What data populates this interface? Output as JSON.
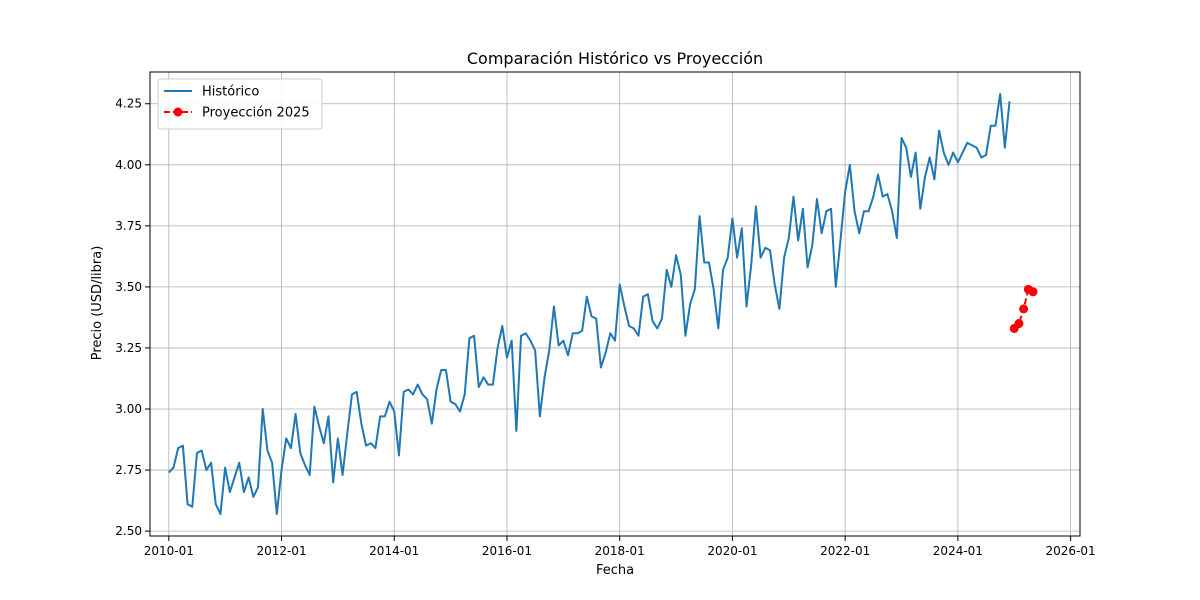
{
  "chart_data": {
    "type": "line",
    "title": "Comparación Histórico vs Proyección",
    "xlabel": "Fecha",
    "ylabel": "Precio (USD/libra)",
    "x_ticks": [
      "2010-01",
      "2012-01",
      "2014-01",
      "2016-01",
      "2018-01",
      "2020-01",
      "2022-01",
      "2024-01",
      "2026-01"
    ],
    "y_ticks": [
      "2.50",
      "2.75",
      "3.00",
      "3.25",
      "3.50",
      "3.75",
      "4.00",
      "4.25"
    ],
    "xlim": [
      "2009-09",
      "2026-03"
    ],
    "ylim": [
      2.48,
      4.38
    ],
    "grid": true,
    "legend_position": "top-left",
    "series": [
      {
        "name": "Histórico",
        "color": "#1f77b4",
        "style": "solid",
        "start": "2010-01",
        "step": "month",
        "values": [
          2.74,
          2.76,
          2.84,
          2.85,
          2.61,
          2.6,
          2.82,
          2.83,
          2.75,
          2.78,
          2.61,
          2.57,
          2.76,
          2.66,
          2.72,
          2.78,
          2.66,
          2.72,
          2.64,
          2.68,
          3.0,
          2.83,
          2.78,
          2.57,
          2.75,
          2.88,
          2.84,
          2.98,
          2.82,
          2.77,
          2.73,
          3.01,
          2.93,
          2.86,
          2.97,
          2.7,
          2.88,
          2.73,
          2.9,
          3.06,
          3.07,
          2.94,
          2.85,
          2.86,
          2.84,
          2.97,
          2.97,
          3.03,
          2.99,
          2.81,
          3.07,
          3.08,
          3.06,
          3.1,
          3.06,
          3.04,
          2.94,
          3.08,
          3.16,
          3.16,
          3.03,
          3.02,
          2.99,
          3.06,
          3.29,
          3.3,
          3.09,
          3.13,
          3.1,
          3.1,
          3.25,
          3.34,
          3.21,
          3.28,
          2.91,
          3.3,
          3.31,
          3.28,
          3.24,
          2.97,
          3.13,
          3.24,
          3.42,
          3.26,
          3.28,
          3.22,
          3.31,
          3.31,
          3.32,
          3.46,
          3.38,
          3.37,
          3.17,
          3.23,
          3.31,
          3.28,
          3.51,
          3.42,
          3.34,
          3.33,
          3.3,
          3.46,
          3.47,
          3.36,
          3.33,
          3.37,
          3.57,
          3.5,
          3.63,
          3.55,
          3.3,
          3.43,
          3.49,
          3.79,
          3.6,
          3.6,
          3.49,
          3.33,
          3.57,
          3.62,
          3.78,
          3.62,
          3.74,
          3.42,
          3.59,
          3.83,
          3.62,
          3.66,
          3.65,
          3.51,
          3.41,
          3.62,
          3.7,
          3.87,
          3.69,
          3.82,
          3.58,
          3.67,
          3.86,
          3.72,
          3.81,
          3.82,
          3.5,
          3.69,
          3.89,
          4.0,
          3.81,
          3.72,
          3.81,
          3.81,
          3.87,
          3.96,
          3.87,
          3.88,
          3.81,
          3.7,
          4.11,
          4.07,
          3.95,
          4.05,
          3.82,
          3.95,
          4.03,
          3.94,
          4.14,
          4.05,
          4.0,
          4.05,
          4.01,
          4.05,
          4.09,
          4.08,
          4.07,
          4.03,
          4.04,
          4.16,
          4.16,
          4.29,
          4.07,
          4.26
        ]
      },
      {
        "name": "Proyección 2025",
        "color": "#ff0000",
        "style": "dashed-marker",
        "start": "2025-01",
        "step": "month",
        "values": [
          3.33,
          3.35,
          3.41,
          3.49,
          3.48
        ]
      }
    ]
  }
}
